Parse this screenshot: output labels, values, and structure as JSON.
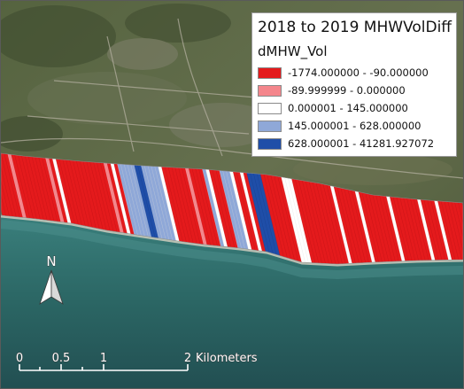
{
  "legend": {
    "title": "2018 to 2019 MHWVolDiff",
    "field": "dMHW_Vol",
    "classes": [
      {
        "label": "-1774.000000 - -90.000000",
        "color": "#e41a1c"
      },
      {
        "label": "-89.999999 - 0.000000",
        "color": "#f4868c"
      },
      {
        "label": "0.000001 - 145.000000",
        "color": "#ffffff"
      },
      {
        "label": "145.000001 - 628.000000",
        "color": "#8fa8d8"
      },
      {
        "label": "628.000001 - 41281.927072",
        "color": "#1f4ea8"
      }
    ]
  },
  "north_arrow": {
    "label": "N"
  },
  "scale_bar": {
    "ticks": [
      "0",
      "0.5",
      "1",
      "2"
    ],
    "unit": "Kilometers"
  },
  "colors": {
    "water": "#2f6b6a",
    "land": "#4d5a3a",
    "sand": "#c8c0ae"
  }
}
